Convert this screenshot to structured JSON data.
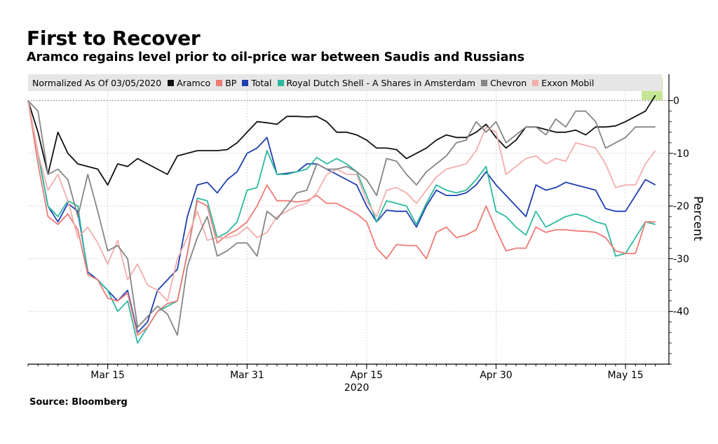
{
  "header": {
    "title": "First to Recover",
    "subtitle": "Aramco regains level prior to oil-price war between Saudis and Russians"
  },
  "footer": {
    "source": "Source: Bloomberg"
  },
  "chart_data": {
    "type": "line",
    "title": "First to Recover",
    "subtitle": "Aramco regains level prior to oil-price war between Saudis and Russians",
    "legend_note": "Normalized As Of 03/05/2020",
    "ylabel": "Percent",
    "year_label": "2020",
    "ylim": [
      -50,
      5
    ],
    "yticks": [
      0,
      -10,
      -20,
      -30,
      -40
    ],
    "xlim": [
      0,
      64.5
    ],
    "xticks": [
      {
        "label": "Mar 15",
        "x": 8
      },
      {
        "label": "Mar 31",
        "x": 22
      },
      {
        "label": "Apr 15",
        "x": 34
      },
      {
        "label": "Apr 30",
        "x": 47
      },
      {
        "label": "May 15",
        "x": 60
      }
    ],
    "colors": {
      "Aramco": "#111111",
      "BP": "#ef7a75",
      "Total": "#1f3fae",
      "Royal Dutch Shell - A Shares in Amsterdam": "#2cb9a0",
      "Chevron": "#858585",
      "Exxon Mobil": "#f3aeac"
    },
    "series": [
      {
        "name": "Aramco",
        "values": [
          0,
          -6,
          -14,
          -6,
          -10,
          -12,
          -12.5,
          -13,
          -16,
          -12,
          -12.5,
          -11,
          -12,
          -13,
          -14,
          -10.5,
          -10,
          -9.5,
          -9.5,
          -9.5,
          -9.3,
          -8,
          -6,
          -4,
          -4.2,
          -4.5,
          -3,
          -3,
          -3.1,
          -3,
          -4,
          -6,
          -6,
          -6.5,
          -7.5,
          -9,
          -9,
          -9.3,
          -11,
          -10,
          -9,
          -7.5,
          -6.5,
          -7,
          -7,
          -6,
          -4.5,
          -7,
          -9,
          -7.5,
          -5,
          -5,
          -5.5,
          -6,
          -6,
          -5.6,
          -6.5,
          -5,
          -5,
          -4.8,
          -4,
          -3,
          -2,
          1
        ]
      },
      {
        "name": "Total",
        "values": [
          0,
          -10,
          -20,
          -23,
          -19.5,
          -21,
          -32.5,
          -34,
          -36,
          -38,
          -36,
          -44,
          -42,
          -36,
          -34,
          -32,
          -22,
          -16,
          -15.5,
          -17.5,
          -15,
          -13.5,
          -10,
          -9,
          -7,
          -14,
          -13.8,
          -13.5,
          -12,
          -12,
          -13,
          -14,
          -15,
          -16,
          -20,
          -23,
          -20.8,
          -21,
          -21,
          -24,
          -20,
          -17,
          -18,
          -18,
          -17.5,
          -16,
          -13.5,
          -16,
          -18,
          -20,
          -22,
          -16,
          -17,
          -16.5,
          -15.5,
          -16,
          -16.5,
          -17,
          -20.5,
          -21,
          -21,
          -18,
          -15,
          -16
        ]
      },
      {
        "name": "Royal Dutch Shell - A Shares in Amsterdam",
        "values": [
          0,
          -10,
          -20,
          -22,
          -19,
          -20,
          -33,
          -34,
          -36,
          -40,
          -38,
          -46,
          -43,
          -40,
          -39,
          -38,
          -29,
          -18.5,
          -19,
          -26,
          -25,
          -23,
          -17,
          -16.5,
          -9.5,
          -14,
          -14,
          -13.5,
          -13,
          -10.8,
          -12,
          -11,
          -12,
          -13.5,
          -18,
          -23,
          -19,
          -19.5,
          -20,
          -23.5,
          -19.5,
          -16,
          -17,
          -17.5,
          -17,
          -15,
          -12.5,
          -21,
          -22,
          -24,
          -25.5,
          -21,
          -24,
          -23,
          -22,
          -21.5,
          -22,
          -23,
          -23.5,
          -29.5,
          -29,
          -26,
          -23,
          -23.5
        ]
      },
      {
        "name": "BP",
        "values": [
          0,
          -12,
          -22,
          -23.5,
          -21.5,
          -24.5,
          -33,
          -34,
          -37.5,
          -38,
          -36.5,
          -44.5,
          -43,
          -40,
          -38.5,
          -38,
          -29,
          -19,
          -20,
          -27,
          -25.5,
          -24.5,
          -23,
          -20,
          -16,
          -19,
          -19,
          -19.2,
          -19,
          -18,
          -19.5,
          -19.5,
          -20.5,
          -21.5,
          -23,
          -28,
          -30,
          -27.3,
          -27.5,
          -27.5,
          -30,
          -25,
          -24,
          -26,
          -25.5,
          -24.5,
          -20,
          -24.5,
          -28.5,
          -28,
          -28,
          -24,
          -25,
          -24.5,
          -24.5,
          -24.7,
          -24.8,
          -25,
          -26,
          -28.5,
          -29,
          -29,
          -23,
          -23
        ]
      },
      {
        "name": "Exxon Mobil",
        "values": [
          0,
          -10,
          -17,
          -14,
          -19,
          -26,
          -24,
          -27,
          -31,
          -26.5,
          -34,
          -31,
          -35,
          -36,
          -38,
          -30,
          -26,
          -21,
          -26.5,
          -26,
          -26,
          -25.5,
          -24,
          -26,
          -25,
          -22,
          -21,
          -20,
          -19.5,
          -17.5,
          -14,
          -13,
          -14,
          -14,
          -19,
          -22,
          -17,
          -16.5,
          -17.5,
          -19.5,
          -17,
          -14.5,
          -13,
          -12.5,
          -12,
          -9.5,
          -5,
          -6,
          -14,
          -12.5,
          -11,
          -10.5,
          -12,
          -11,
          -11.5,
          -8,
          -8.5,
          -9,
          -12,
          -16.5,
          -16,
          -16,
          -12,
          -9.5
        ]
      },
      {
        "name": "Chevron",
        "values": [
          0,
          -2,
          -14,
          -13,
          -15,
          -22,
          -14,
          -21,
          -28.5,
          -27.5,
          -30,
          -43,
          -41,
          -39,
          -40.5,
          -44.5,
          -31.5,
          -26,
          -22,
          -29.5,
          -28.5,
          -27,
          -27,
          -29.5,
          -21,
          -22.5,
          -20,
          -17.5,
          -17,
          -12,
          -13,
          -13,
          -12.5,
          -13.5,
          -15,
          -18,
          -11,
          -11.5,
          -14,
          -16,
          -13.5,
          -12,
          -10.5,
          -8,
          -7.5,
          -4,
          -6,
          -4,
          -8,
          -6.5,
          -5,
          -5,
          -6.5,
          -3.5,
          -5,
          -2,
          -2,
          -4,
          -9,
          -8,
          -7,
          -5,
          -5,
          -5
        ]
      }
    ]
  }
}
